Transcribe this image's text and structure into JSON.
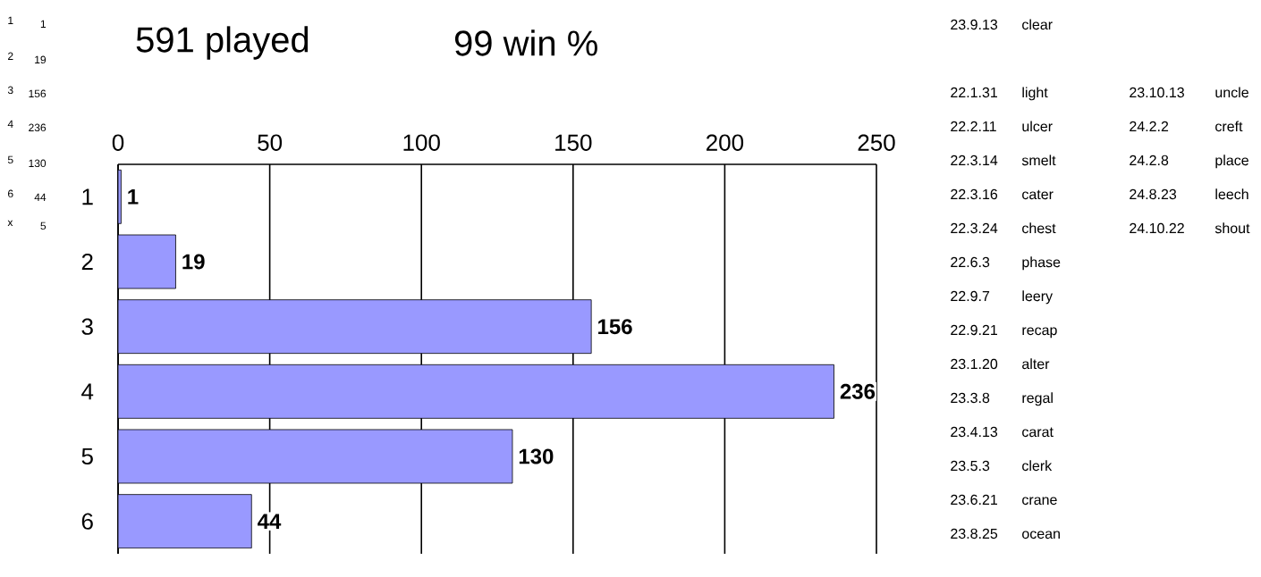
{
  "chart_data": {
    "type": "bar",
    "orientation": "horizontal",
    "title": "591 played",
    "subtitle": "99 win %",
    "categories": [
      "1",
      "2",
      "3",
      "4",
      "5",
      "6"
    ],
    "values": [
      1,
      19,
      156,
      236,
      130,
      44
    ],
    "color": "#9999ff",
    "xlim": [
      0,
      250
    ],
    "xticks": [
      0,
      50,
      100,
      150,
      200,
      250
    ],
    "grid": "x",
    "data_labels": true,
    "annotations": [
      "1",
      "1",
      "2",
      "19",
      "3",
      "156",
      "4",
      "236",
      "5",
      "130",
      "6",
      "44",
      "x",
      "5",
      "23.9.13",
      "clear",
      "22.1.31",
      "light",
      "22.2.11",
      "ulcer",
      "22.3.14",
      "smelt",
      "22.3.16",
      "cater",
      "22.3.24",
      "chest",
      "22.6.3",
      "phase",
      "22.9.7",
      "leery",
      "22.9.21",
      "recap",
      "23.1.20",
      "alter",
      "23.3.8",
      "regal",
      "23.4.13",
      "carat",
      "23.5.3",
      "clerk",
      "23.6.21",
      "crane",
      "23.8.25",
      "ocean",
      "23.10.13",
      "uncle",
      "24.2.2",
      "creft",
      "24.2.8",
      "place",
      "24.8.23",
      "leech",
      "24.10.22",
      "shout"
    ]
  }
}
